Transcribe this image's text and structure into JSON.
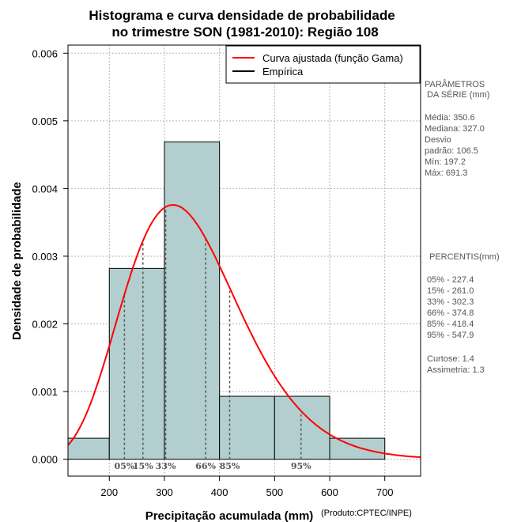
{
  "chart_data": {
    "type": "bar",
    "title_lines": [
      "Histograma e curva densidade de probabilidade",
      "no trimestre SON (1981-2010): Região 108"
    ],
    "xlabel": "Precipitação acumulada (mm)",
    "ylabel": "Densidade de probabilidade",
    "credit": "(Produto:CPTEC/INPE)",
    "xlim": [
      125,
      765
    ],
    "ylim": [
      -0.00025,
      0.00612
    ],
    "x_ticks": [
      200,
      300,
      400,
      500,
      600,
      700
    ],
    "y_ticks": [
      0.0,
      0.001,
      0.002,
      0.003,
      0.004,
      0.005,
      0.006
    ],
    "y_tick_labels": [
      "0.000",
      "0.001",
      "0.002",
      "0.003",
      "0.004",
      "0.005",
      "0.006"
    ],
    "grid": true,
    "bins": [
      {
        "from": 125,
        "to": 200,
        "density": 0.00031
      },
      {
        "from": 200,
        "to": 300,
        "density": 0.00282
      },
      {
        "from": 300,
        "to": 400,
        "density": 0.00469
      },
      {
        "from": 400,
        "to": 500,
        "density": 0.00093
      },
      {
        "from": 500,
        "to": 600,
        "density": 0.00093
      },
      {
        "from": 600,
        "to": 700,
        "density": 0.00031
      }
    ],
    "bar_color": "#b3cece",
    "curve": {
      "name": "Curva ajustada (função Gama)",
      "shape": 10.0,
      "scale": 35.06,
      "color": "#ff0000"
    },
    "empirical": {
      "name": "Empírica",
      "color": "#000000"
    },
    "legend_position": "top-right",
    "percentile_marks": [
      {
        "label": "05%",
        "x": 227.4
      },
      {
        "label": "15%",
        "x": 261.0
      },
      {
        "label": "33%",
        "x": 302.3
      },
      {
        "label": "66%",
        "x": 374.8
      },
      {
        "label": "85%",
        "x": 418.4
      },
      {
        "label": "95%",
        "x": 547.9
      }
    ]
  },
  "stats_panel": {
    "params_title_1": "PARÂMETROS",
    "params_title_2": "DA SÉRIE (mm)",
    "media": "Média:  350.6",
    "mediana": "Mediana:  327.0",
    "desvio_1": "Desvio",
    "desvio_2": "padrão:  106.5",
    "min": "Mín:  197.2",
    "max": "Máx:  691.3",
    "percentis_title": "PERCENTIS(mm)",
    "p05": "05% -   227.4",
    "p15": "15% -   261.0",
    "p33": "33% -   302.3",
    "p66": "66% -   374.8",
    "p85": "85% -   418.4",
    "p95": "95% -   547.9",
    "curtose": "Curtose:  1.4",
    "assimetria": "Assimetria:  1.3"
  }
}
